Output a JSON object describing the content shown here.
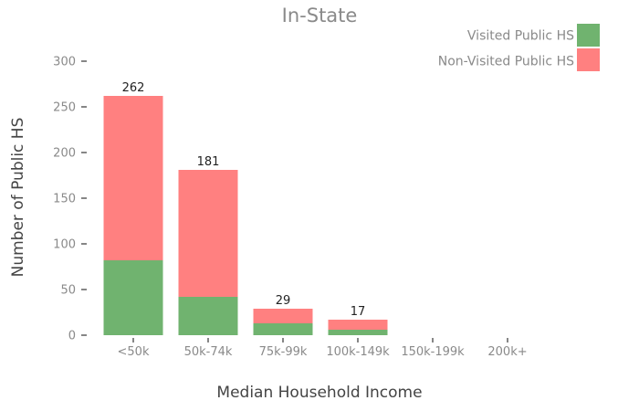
{
  "chart_data": {
    "type": "bar",
    "stacked": true,
    "title": "In-State",
    "xlabel": "Median Household Income",
    "ylabel": "Number of Public HS",
    "categories": [
      "<50k",
      "50k-74k",
      "75k-99k",
      "100k-149k",
      "150k-199k",
      "200k+"
    ],
    "series": [
      {
        "name": "Visited Public HS",
        "color": "#70b36f",
        "values": [
          82,
          42,
          13,
          6,
          0,
          0
        ]
      },
      {
        "name": "Non-Visited Public HS",
        "color": "#ff8080",
        "values": [
          180,
          139,
          16,
          11,
          0,
          0
        ]
      }
    ],
    "totals": [
      262,
      181,
      29,
      17,
      null,
      null
    ],
    "ylim": [
      0,
      310
    ],
    "yticks": [
      0,
      50,
      100,
      150,
      200,
      250,
      300
    ],
    "grid": false,
    "legend_position": "top-right"
  }
}
